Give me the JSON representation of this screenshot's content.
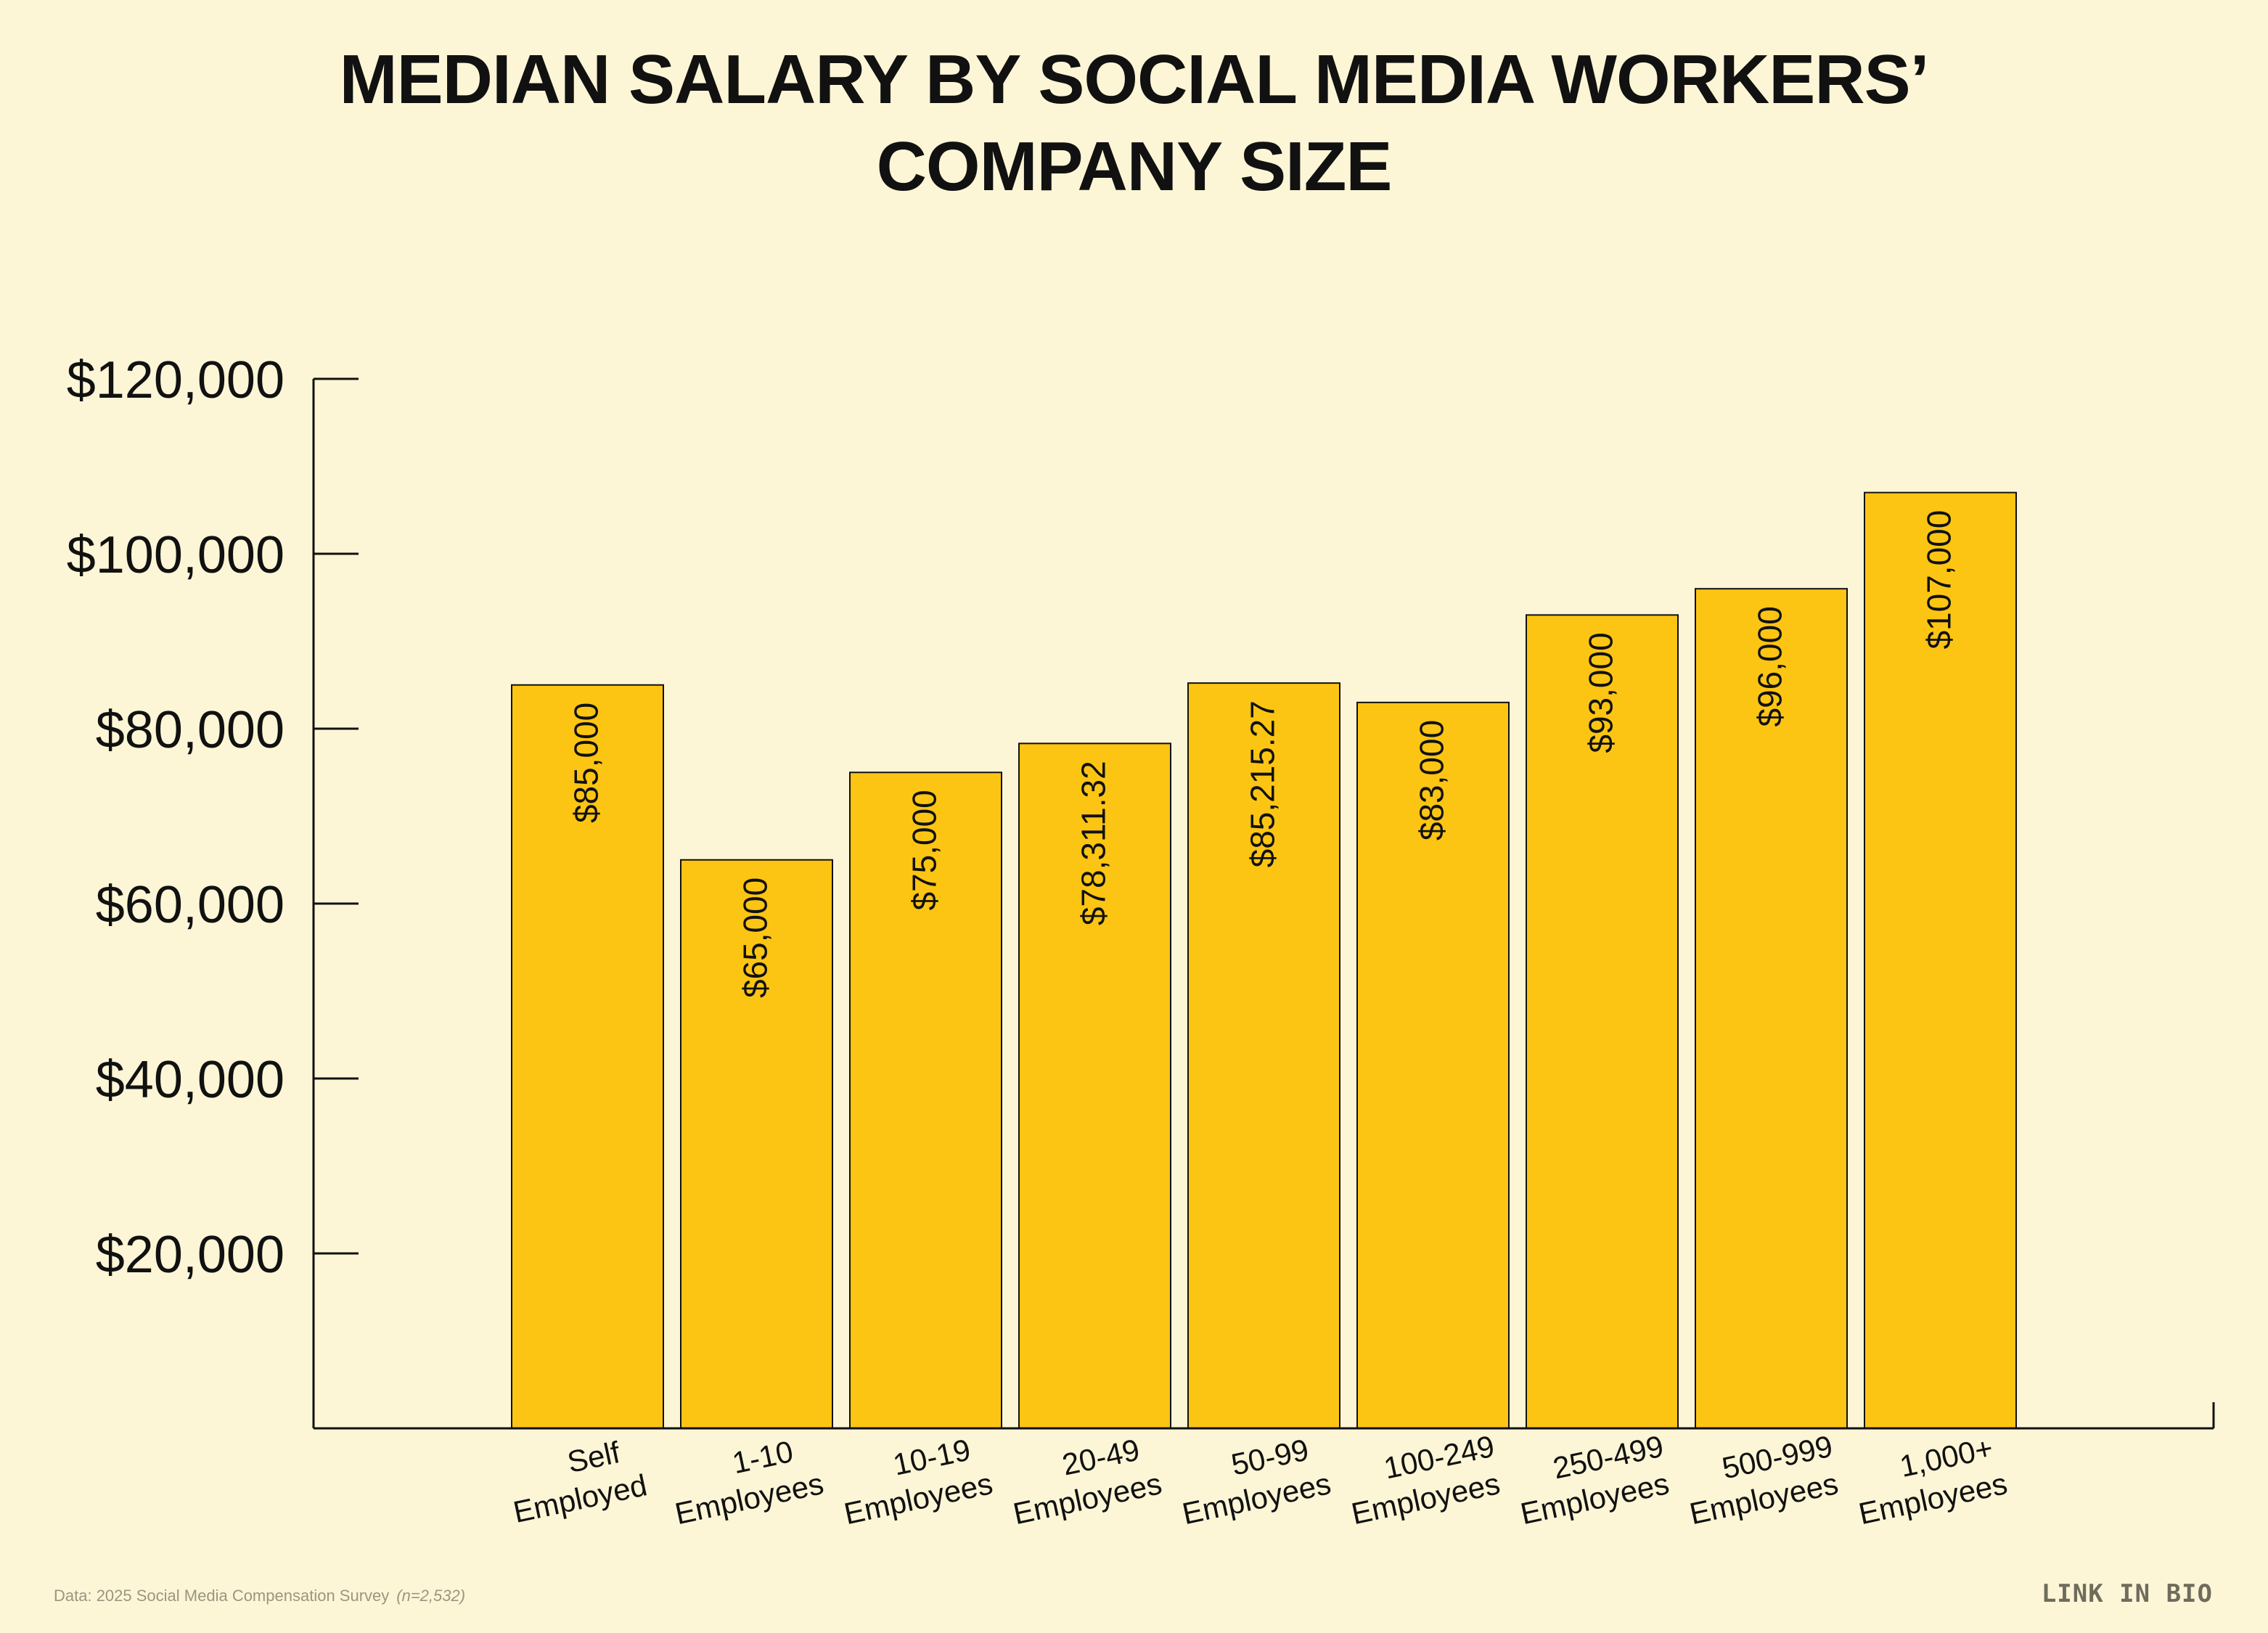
{
  "title_line1": "MEDIAN SALARY BY SOCIAL MEDIA WORKERS’",
  "title_line2": "COMPANY SIZE",
  "footer": {
    "source": "Data: 2025 Social Media Compensation Survey",
    "sample": "(n=2,532)"
  },
  "brand": "LINK IN BIO",
  "colors": {
    "background": "#FDF6D6",
    "bar": "#FDC513",
    "axis": "#111111"
  },
  "chart_data": {
    "type": "bar",
    "title": "MEDIAN SALARY BY SOCIAL MEDIA WORKERS’ COMPANY SIZE",
    "categories": [
      [
        "Self",
        "Employed"
      ],
      [
        "1-10",
        "Employees"
      ],
      [
        "10-19",
        "Employees"
      ],
      [
        "20-49",
        "Employees"
      ],
      [
        "50-99",
        "Employees"
      ],
      [
        "100-249",
        "Employees"
      ],
      [
        "250-499",
        "Employees"
      ],
      [
        "500-999",
        "Employees"
      ],
      [
        "1,000+",
        "Employees"
      ]
    ],
    "values": [
      85000,
      65000,
      75000,
      78311.32,
      85215.27,
      83000,
      93000,
      96000,
      107000
    ],
    "value_labels": [
      "$85,000",
      "$65,000",
      "$75,000",
      "$78,311.32",
      "$85,215.27",
      "$83,000",
      "$93,000",
      "$96,000",
      "$107,000"
    ],
    "y_ticks": [
      {
        "value": 20000,
        "label": "$20,000"
      },
      {
        "value": 40000,
        "label": "$40,000"
      },
      {
        "value": 60000,
        "label": "$60,000"
      },
      {
        "value": 80000,
        "label": "$80,000"
      },
      {
        "value": 100000,
        "label": "$100,000"
      },
      {
        "value": 120000,
        "label": "$120,000"
      }
    ],
    "ylim": [
      0,
      120000
    ],
    "grid": false,
    "xlabel": "",
    "ylabel": ""
  }
}
